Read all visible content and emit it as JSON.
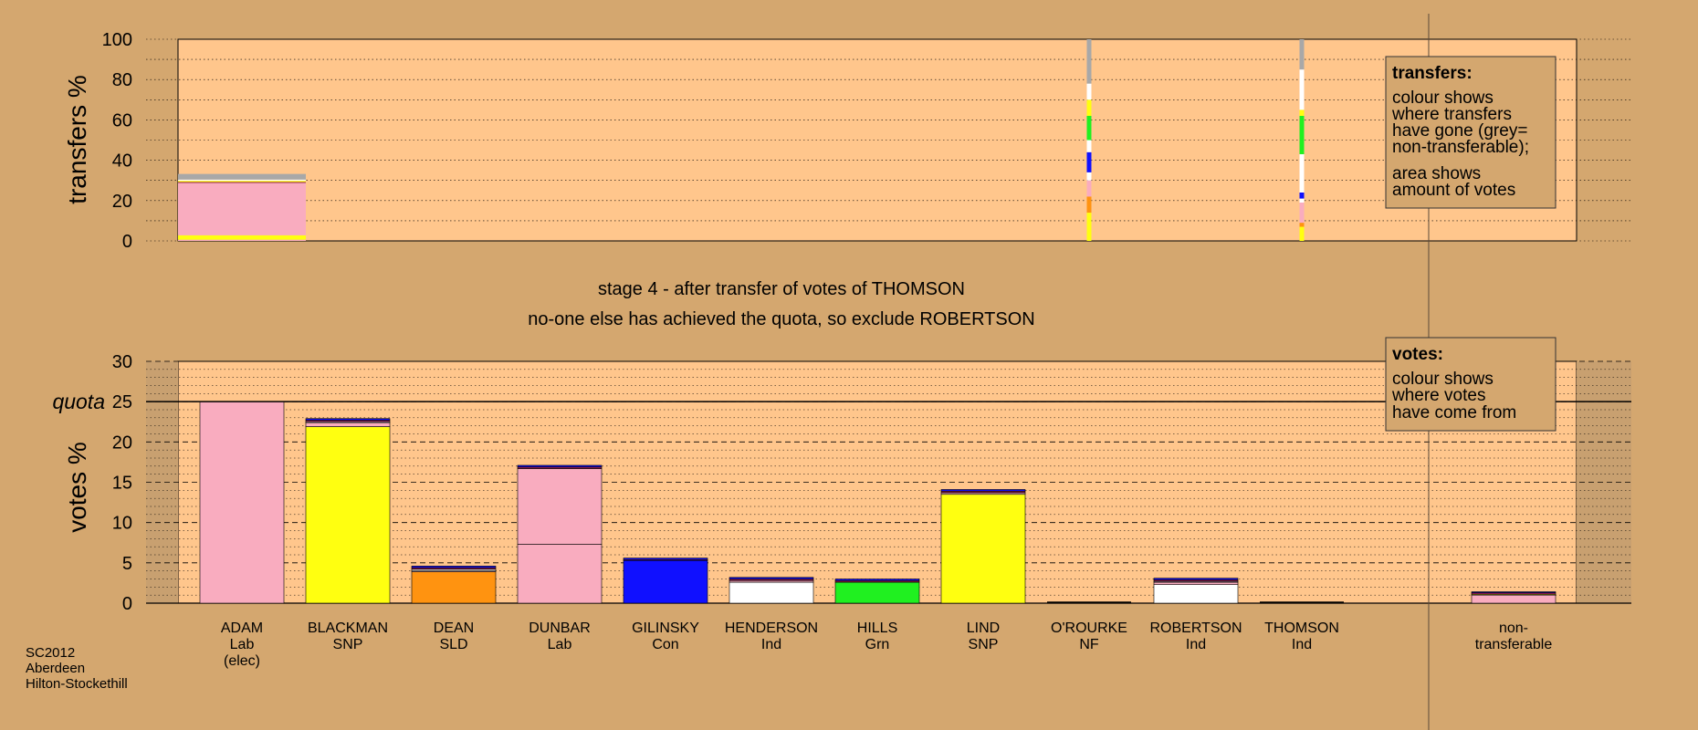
{
  "footer": [
    "SC2012",
    "Aberdeen",
    "Hilton-Stockethill"
  ],
  "captions": {
    "stage": "stage 4 - after transfer of votes of THOMSON",
    "note": "no-one else has achieved the quota, so exclude ROBERTSON"
  },
  "legend_transfers": {
    "title": "transfers:",
    "lines": [
      "colour shows",
      "where transfers",
      "have gone (grey=",
      "non-transferable);"
    ],
    "lines2": [
      "area shows",
      "amount of votes"
    ]
  },
  "legend_votes": {
    "title": "votes:",
    "lines": [
      "colour shows",
      "where votes",
      "have come from"
    ]
  },
  "colors": {
    "Lab": "#f9acbf",
    "SNP": "#ffff10",
    "SLD": "#ff9310",
    "Con": "#1010ff",
    "Ind": "#ffffff",
    "Grn": "#20f020",
    "NF": "#8b1a4a",
    "nontransferable": "#a8a8a8",
    "plot_bg": "#ffc68c",
    "page_bg": "#d4a76f"
  },
  "chart_data": [
    {
      "type": "bar",
      "stacked": true,
      "title": "",
      "xlabel": "",
      "ylabel": "transfers %",
      "ylim": [
        0,
        100
      ],
      "yticks": [
        0,
        20,
        40,
        60,
        80,
        100
      ],
      "grid": "dotted",
      "columns": [
        {
          "candidate": "ADAM",
          "width_share": 1.0,
          "segments": [
            [
              "Lab",
              0.6
            ],
            [
              "SNP",
              2.2
            ],
            [
              "Lab",
              26
            ],
            [
              "NF",
              0.4
            ],
            [
              "SNP",
              0.6
            ],
            [
              "Ind",
              0.6
            ],
            [
              "nontransferable",
              2.8
            ]
          ]
        },
        {
          "candidate": "O'ROURKE",
          "width_share": 0.03,
          "segments": [
            [
              "SNP",
              14
            ],
            [
              "SLD",
              8
            ],
            [
              "Lab",
              8
            ],
            [
              "Ind",
              4
            ],
            [
              "Con",
              10
            ],
            [
              "Ind",
              6
            ],
            [
              "Grn",
              12
            ],
            [
              "SNP",
              8
            ],
            [
              "Ind",
              8
            ],
            [
              "nontransferable",
              22
            ]
          ]
        },
        {
          "candidate": "THOMSON",
          "width_share": 0.03,
          "segments": [
            [
              "SNP",
              7
            ],
            [
              "SLD",
              2
            ],
            [
              "Lab",
              10
            ],
            [
              "Ind",
              2
            ],
            [
              "Con",
              3
            ],
            [
              "Ind",
              19
            ],
            [
              "Grn",
              19
            ],
            [
              "SNP",
              3
            ],
            [
              "Ind",
              20
            ],
            [
              "nontransferable",
              15
            ]
          ]
        }
      ]
    },
    {
      "type": "bar",
      "stacked": true,
      "title": "",
      "xlabel": "",
      "ylabel": "votes %",
      "ylim": [
        0,
        30
      ],
      "yticks": [
        0,
        5,
        10,
        15,
        20,
        25,
        30
      ],
      "quota": 25,
      "quota_label": "quota",
      "grid": "dashed",
      "categories": [
        {
          "name": "ADAM",
          "party": "Lab",
          "note": "(elec)"
        },
        {
          "name": "BLACKMAN",
          "party": "SNP"
        },
        {
          "name": "DEAN",
          "party": "SLD"
        },
        {
          "name": "DUNBAR",
          "party": "Lab"
        },
        {
          "name": "GILINSKY",
          "party": "Con"
        },
        {
          "name": "HENDERSON",
          "party": "Ind"
        },
        {
          "name": "HILLS",
          "party": "Grn"
        },
        {
          "name": "LIND",
          "party": "SNP"
        },
        {
          "name": "O'ROURKE",
          "party": "NF"
        },
        {
          "name": "ROBERTSON",
          "party": "Ind"
        },
        {
          "name": "THOMSON",
          "party": "Ind"
        }
      ],
      "extra_category": {
        "name": "non-",
        "party": "transferable"
      },
      "series": [
        {
          "candidate": "ADAM",
          "segments": [
            [
              "Lab",
              25.0
            ]
          ]
        },
        {
          "candidate": "BLACKMAN",
          "segments": [
            [
              "SNP",
              21.9
            ],
            [
              "Lab",
              0.5
            ],
            [
              "Ind",
              0.1
            ],
            [
              "NF",
              0.2
            ],
            [
              "Con",
              0.2
            ]
          ]
        },
        {
          "candidate": "DEAN",
          "segments": [
            [
              "SLD",
              3.9
            ],
            [
              "Lab",
              0.1
            ],
            [
              "Ind",
              0.2
            ],
            [
              "NF",
              0.2
            ],
            [
              "Con",
              0.2
            ]
          ]
        },
        {
          "candidate": "DUNBAR",
          "segments": [
            [
              "Lab",
              7.3
            ],
            [
              "Lab",
              9.4
            ],
            [
              "NF",
              0.2
            ],
            [
              "Con",
              0.2
            ]
          ]
        },
        {
          "candidate": "GILINSKY",
          "segments": [
            [
              "Con",
              5.3
            ],
            [
              "NF",
              0.1
            ],
            [
              "Con",
              0.2
            ]
          ]
        },
        {
          "candidate": "HENDERSON",
          "segments": [
            [
              "Ind",
              2.6
            ],
            [
              "Lab",
              0.2
            ],
            [
              "NF",
              0.2
            ],
            [
              "Con",
              0.2
            ]
          ]
        },
        {
          "candidate": "HILLS",
          "segments": [
            [
              "Grn",
              2.6
            ],
            [
              "NF",
              0.2
            ],
            [
              "Con",
              0.2
            ]
          ]
        },
        {
          "candidate": "LIND",
          "segments": [
            [
              "SNP",
              13.5
            ],
            [
              "Lab",
              0.2
            ],
            [
              "NF",
              0.2
            ],
            [
              "Con",
              0.2
            ]
          ]
        },
        {
          "candidate": "O'ROURKE",
          "segments": [
            [
              "NF",
              0.0
            ]
          ]
        },
        {
          "candidate": "ROBERTSON",
          "segments": [
            [
              "Ind",
              2.3
            ],
            [
              "Lab",
              0.3
            ],
            [
              "Ind",
              0.1
            ],
            [
              "NF",
              0.2
            ],
            [
              "Con",
              0.2
            ]
          ]
        },
        {
          "candidate": "THOMSON",
          "segments": [
            [
              "Ind",
              0.0
            ]
          ]
        },
        {
          "candidate": "non-transferable",
          "segments": [
            [
              "Lab",
              1.0
            ],
            [
              "SNP",
              0.1
            ],
            [
              "NF",
              0.2
            ],
            [
              "Con",
              0.1
            ]
          ]
        }
      ]
    }
  ]
}
